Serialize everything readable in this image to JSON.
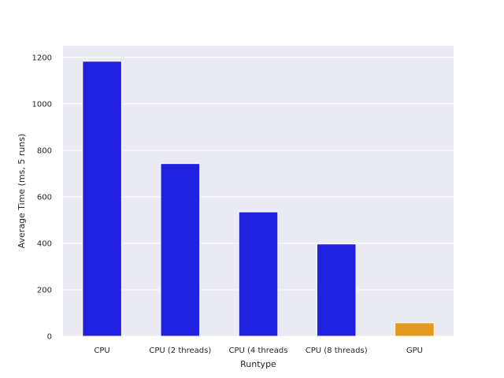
{
  "chart_data": {
    "type": "bar",
    "title": "",
    "xlabel": "Runtype",
    "ylabel": "Average Time (ms, 5 runs)",
    "categories": [
      "CPU",
      "CPU (2 threads)",
      "CPU (4 threads",
      "CPU (8 threads)",
      "GPU"
    ],
    "values": [
      1183,
      743,
      535,
      397,
      58
    ],
    "bar_colors": [
      "#2020e0",
      "#2020e0",
      "#2020e0",
      "#2020e0",
      "#e09a20"
    ],
    "ylim": [
      0,
      1250
    ],
    "yticks": [
      0,
      200,
      400,
      600,
      800,
      1000,
      1200
    ],
    "grid": true,
    "background": "#eaeaf2",
    "grid_color": "#ffffff"
  }
}
